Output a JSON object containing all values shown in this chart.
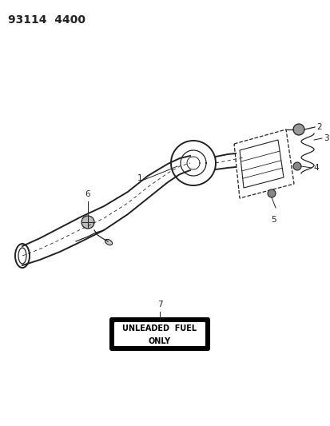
{
  "title_text": "93114  4400",
  "background_color": "#ffffff",
  "line_color": "#222222",
  "label_color": "#000000",
  "header_fontsize": 10,
  "label_fontsize": 7.5,
  "unleaded_text_line1": "UNLEADED  FUEL",
  "unleaded_text_line2": "ONLY"
}
